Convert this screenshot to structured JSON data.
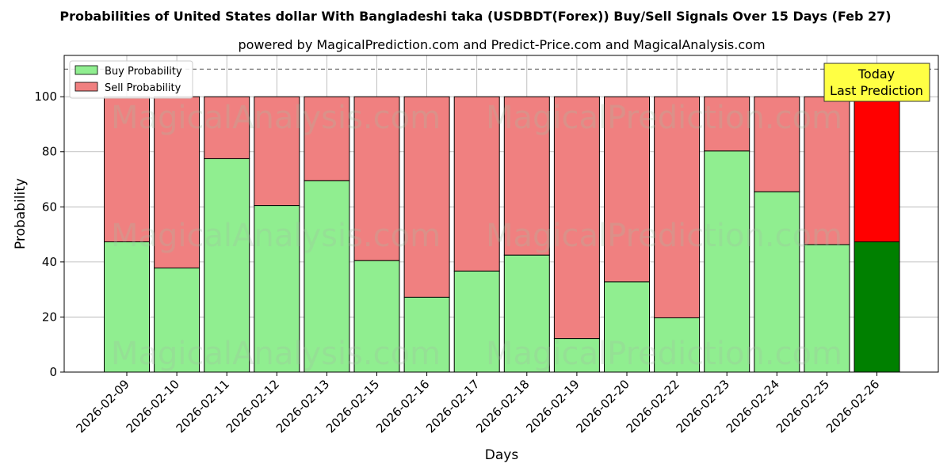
{
  "chart_data": {
    "type": "bar",
    "stacked": true,
    "title": "Probabilities of United States dollar With Bangladeshi taka (USDBDT(Forex)) Buy/Sell Signals Over 15 Days (Feb 27)",
    "subtitle": "powered by MagicalPrediction.com and Predict-Price.com and MagicalAnalysis.com",
    "xlabel": "Days",
    "ylabel": "Probability",
    "ylim": [
      0,
      115
    ],
    "yticks": [
      0,
      20,
      40,
      60,
      80,
      100
    ],
    "grid": true,
    "legend_position": "top-left",
    "reference_line": 110,
    "categories": [
      "2026-02-09",
      "2026-02-10",
      "2026-02-11",
      "2026-02-12",
      "2026-02-13",
      "2026-02-15",
      "2026-02-16",
      "2026-02-17",
      "2026-02-18",
      "2026-02-19",
      "2026-02-20",
      "2026-02-22",
      "2026-02-23",
      "2026-02-24",
      "2026-02-25",
      "2026-02-26"
    ],
    "series": [
      {
        "name": "Buy Probability",
        "color": "#90EE90",
        "values": [
          47.3,
          37.8,
          77.5,
          60.5,
          69.5,
          40.5,
          27.2,
          36.7,
          42.5,
          12.2,
          32.8,
          19.7,
          80.3,
          65.5,
          46.3,
          47.3
        ]
      },
      {
        "name": "Sell Probability",
        "color": "#F08080",
        "values": [
          52.7,
          62.2,
          22.5,
          39.5,
          30.5,
          59.5,
          72.8,
          63.3,
          57.5,
          87.8,
          67.2,
          80.3,
          19.7,
          34.5,
          53.7,
          52.7
        ]
      }
    ],
    "highlight": {
      "index": 15,
      "buy_color": "#008000",
      "sell_color": "#FF0000"
    },
    "annotation": {
      "line1": "Today",
      "line2": "Last Prediction",
      "color": "#FFFF44"
    },
    "watermarks": [
      "MagicalAnalysis.com",
      "MagicalPrediction.com"
    ]
  }
}
